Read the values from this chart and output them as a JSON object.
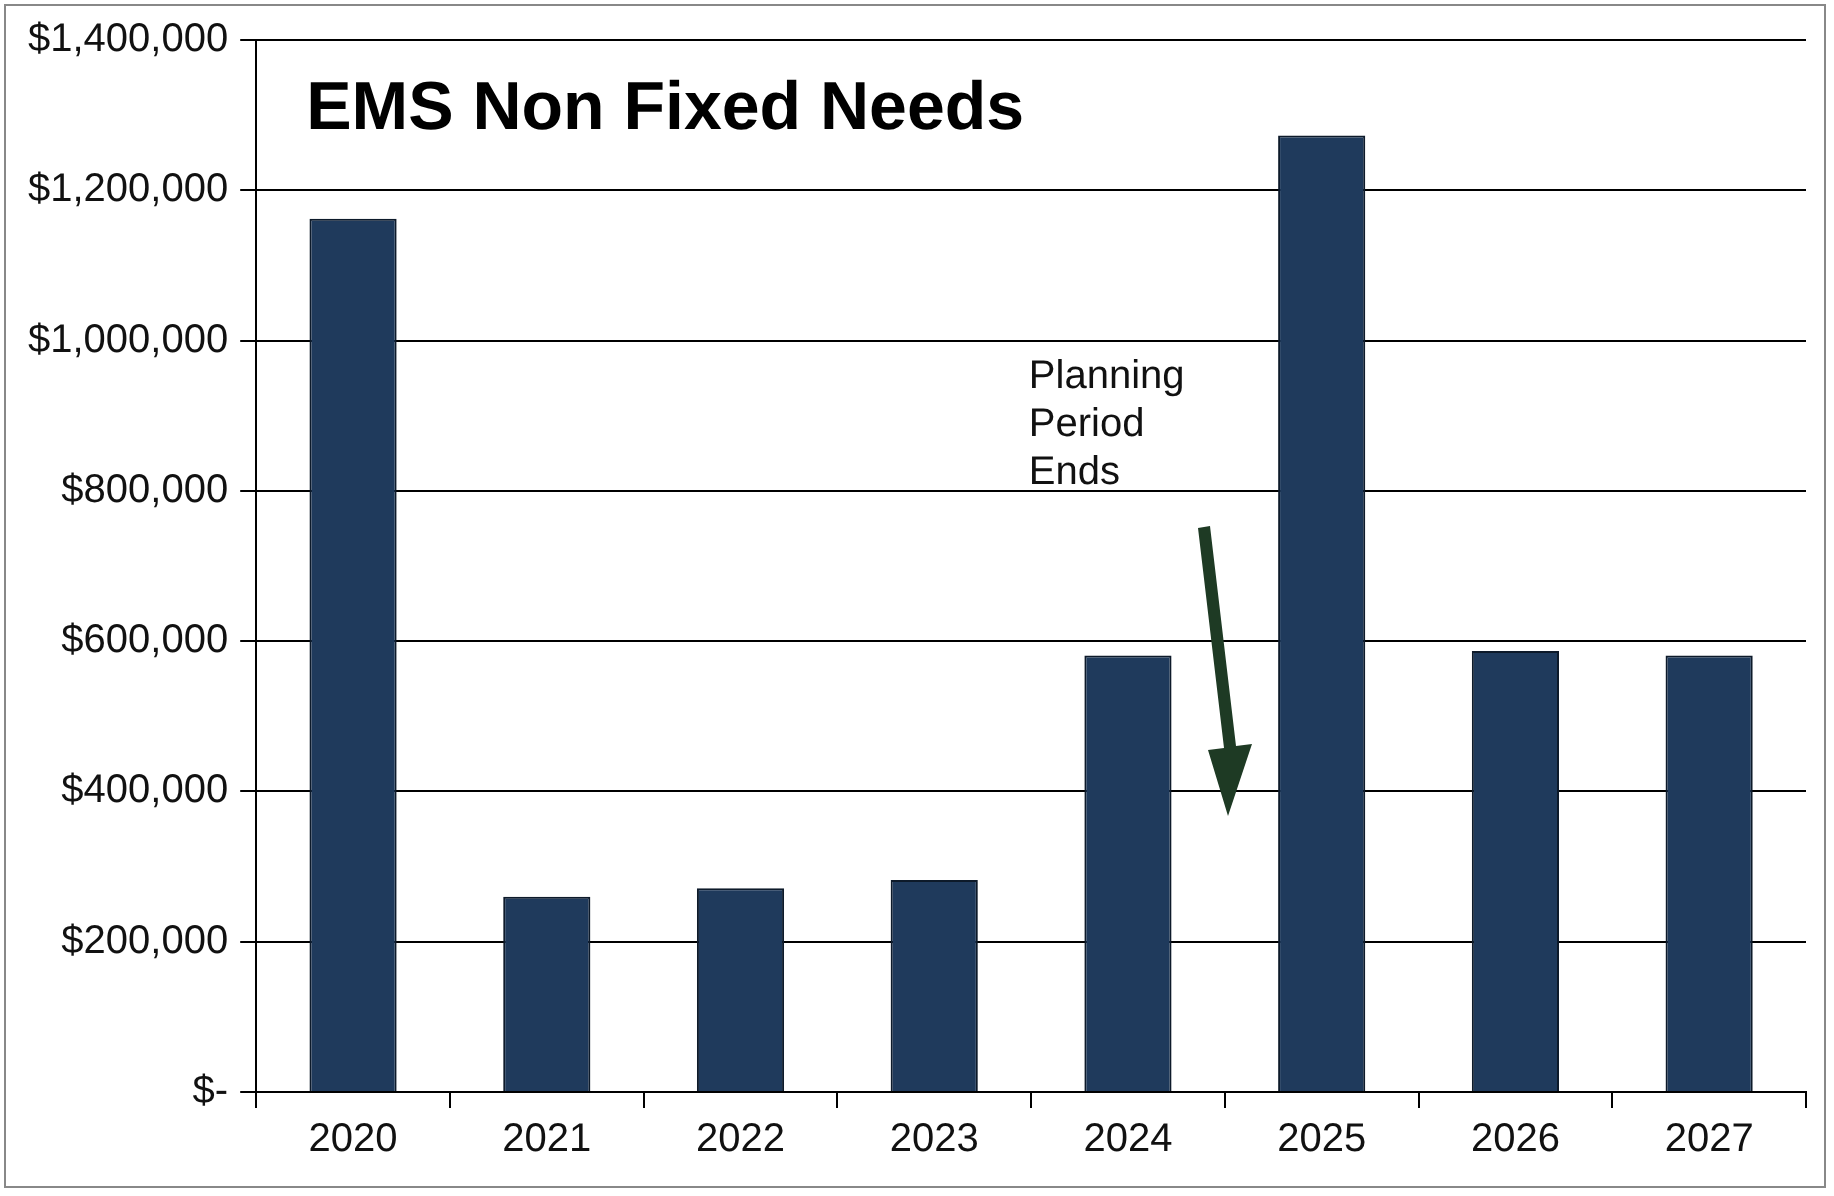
{
  "chart_data": {
    "type": "bar",
    "title": "EMS Non Fixed Needs",
    "categories": [
      "2020",
      "2021",
      "2022",
      "2023",
      "2024",
      "2025",
      "2026",
      "2027"
    ],
    "values": [
      1162000,
      260000,
      271000,
      282000,
      581000,
      1273000,
      587000,
      581000
    ],
    "color": "#1f3a5c",
    "ylim": [
      0,
      1400000
    ],
    "yticks": [
      {
        "value": 0,
        "label": "$-"
      },
      {
        "value": 200000,
        "label": "$200,000"
      },
      {
        "value": 400000,
        "label": "$400,000"
      },
      {
        "value": 600000,
        "label": "$600,000"
      },
      {
        "value": 800000,
        "label": "$800,000"
      },
      {
        "value": 1000000,
        "label": "$1,000,000"
      },
      {
        "value": 1200000,
        "label": "$1,200,000"
      },
      {
        "value": 1400000,
        "label": "$1,400,000"
      }
    ],
    "grid": "y",
    "legend": false,
    "annotations": [
      "Planning\nPeriod\nEnds"
    ]
  }
}
